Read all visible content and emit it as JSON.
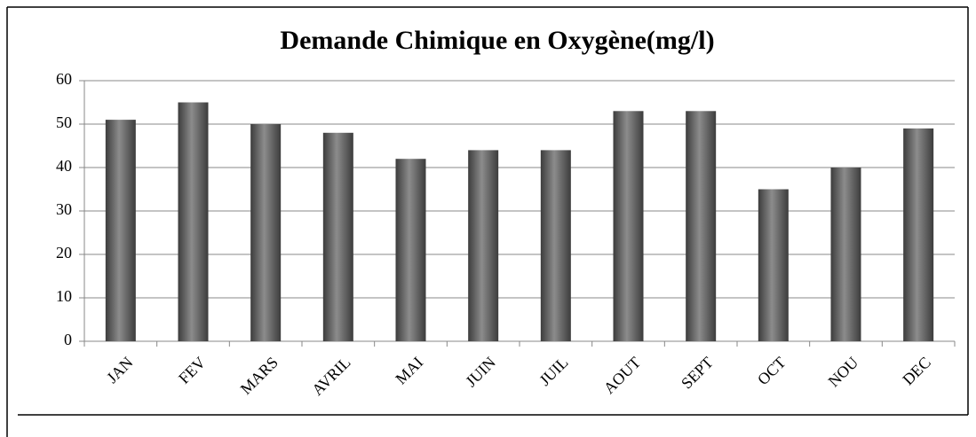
{
  "chart_data": {
    "type": "bar",
    "title": "Demande Chimique en Oxygène(mg/l)",
    "categories": [
      "JAN",
      "FEV",
      "MARS",
      "AVRIL",
      "MAI",
      "JUIN",
      "JUIL",
      "AOUT",
      "SEPT",
      "OCT",
      "NOU",
      "DEC"
    ],
    "values": [
      51,
      55,
      50,
      48,
      42,
      44,
      44,
      53,
      53,
      35,
      40,
      49
    ],
    "color": "#3c3c3c",
    "ylim": [
      0,
      60
    ],
    "yticks": [
      0,
      10,
      20,
      30,
      40,
      50,
      60
    ],
    "grid": true
  }
}
